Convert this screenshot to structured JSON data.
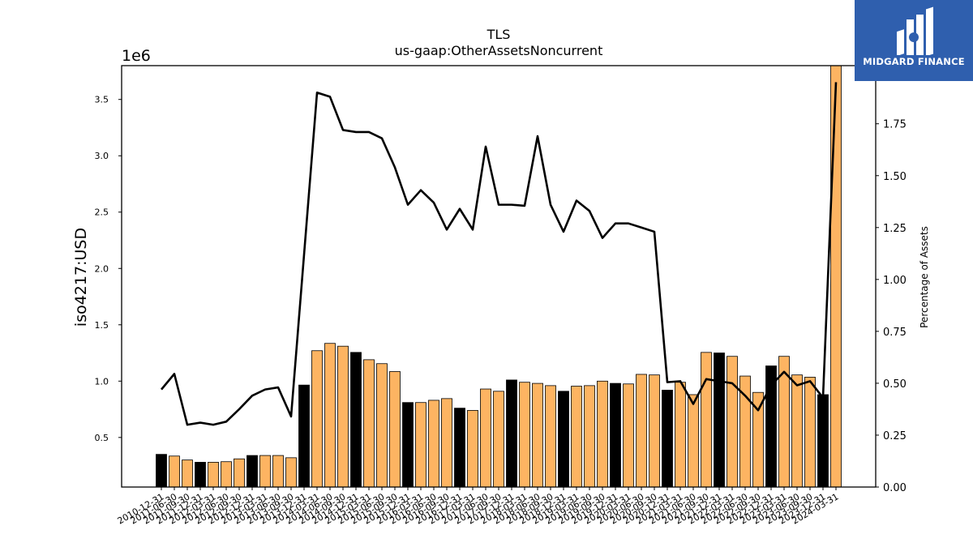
{
  "chart_data": {
    "type": "bar",
    "title": "TLS",
    "subtitle": "us-gaap:OtherAssetsNoncurrent",
    "ylabel": "iso4217:USD",
    "y_offset_label": "1e6",
    "y2label": "Percentage of Assets",
    "ylim": [
      0.06,
      3.8
    ],
    "y2lim": [
      0,
      2.03
    ],
    "yticks": [
      "0.5",
      "1.0",
      "1.5",
      "2.0",
      "2.5",
      "3.0",
      "3.5"
    ],
    "y2ticks": [
      "0.00",
      "0.25",
      "0.50",
      "0.75",
      "1.00",
      "1.25",
      "1.50",
      "1.75"
    ],
    "grid": false,
    "categories": [
      "2010-12-31",
      "2011-06-30",
      "2011-09-30",
      "2011-12-31",
      "2012-03-31",
      "2012-06-30",
      "2012-09-30",
      "2012-12-31",
      "2013-03-31",
      "2013-06-30",
      "2013-09-30",
      "2013-12-31",
      "2014-03-31",
      "2014-06-30",
      "2014-09-30",
      "2014-12-31",
      "2015-03-31",
      "2015-06-30",
      "2015-09-30",
      "2015-12-31",
      "2016-03-31",
      "2016-06-30",
      "2016-09-30",
      "2016-12-31",
      "2017-03-31",
      "2017-06-30",
      "2017-09-30",
      "2017-12-31",
      "2018-03-31",
      "2018-06-30",
      "2018-09-30",
      "2018-12-31",
      "2019-03-31",
      "2019-06-30",
      "2019-09-30",
      "2019-12-31",
      "2020-03-31",
      "2020-06-30",
      "2020-09-30",
      "2020-12-31",
      "2021-03-31",
      "2021-06-30",
      "2021-09-30",
      "2021-12-31",
      "2022-03-31",
      "2022-06-30",
      "2022-09-30",
      "2022-12-31",
      "2023-03-31",
      "2023-06-30",
      "2023-09-30",
      "2023-12-31",
      "2024-03-31"
    ],
    "tick_labels": [
      "2010-12-31",
      "2011-06-30",
      "2011-09-30",
      "2011-12-31",
      "2012-03-31",
      "2012-06-30",
      "2012-09-30",
      "2012-12-31",
      "2013-03-31",
      "2013-06-30",
      "2013-09-30",
      "2013-12-31",
      "2014-03-31",
      "2014-06-30",
      "2014-09-30",
      "2014-12-31",
      "2015-03-31",
      "2015-06-30",
      "2015-09-30",
      "2015-12-31",
      "2016-03-31",
      "2016-06-30",
      "2016-09-30",
      "2016-12-31",
      "2017-03-31",
      "2017-06-30",
      "2017-09-30",
      "2017-12-31",
      "2018-03-31",
      "2018-06-30",
      "2018-09-30",
      "2018-12-31",
      "2019-03-31",
      "2019-06-30",
      "2019-09-30",
      "2019-12-31",
      "2020-03-31",
      "2020-06-30",
      "2020-09-30",
      "2020-12-31",
      "2021-03-31",
      "2021-06-30",
      "2021-09-30",
      "2021-12-31",
      "2022-03-31",
      "2022-06-30",
      "2022-09-30",
      "2022-12-31",
      "2023-03-31",
      "2023-06-30",
      "2023-09-30",
      "2023-12-31",
      "2024-03-31"
    ],
    "values": [
      0.35,
      0.335,
      0.3,
      0.28,
      0.28,
      0.285,
      0.31,
      0.34,
      0.34,
      0.34,
      0.32,
      0.965,
      1.27,
      1.335,
      1.31,
      1.255,
      1.19,
      1.155,
      1.085,
      0.81,
      0.81,
      0.83,
      0.845,
      0.76,
      0.74,
      0.93,
      0.91,
      1.01,
      0.99,
      0.98,
      0.96,
      0.91,
      0.955,
      0.96,
      1.0,
      0.98,
      0.975,
      1.06,
      1.055,
      0.92,
      0.99,
      0.88,
      1.255,
      1.25,
      1.22,
      1.045,
      0.9,
      1.135,
      1.22,
      1.055,
      1.035,
      0.88,
      3.8
    ],
    "bar_highlight": [
      true,
      false,
      false,
      true,
      false,
      false,
      false,
      true,
      false,
      false,
      false,
      true,
      false,
      false,
      false,
      true,
      false,
      false,
      false,
      true,
      false,
      false,
      false,
      true,
      false,
      false,
      false,
      true,
      false,
      false,
      false,
      true,
      false,
      false,
      false,
      true,
      false,
      false,
      false,
      true,
      false,
      false,
      false,
      true,
      false,
      false,
      false,
      true,
      false,
      false,
      false,
      true,
      false
    ],
    "line_pct": [
      0.47,
      0.545,
      0.3,
      0.31,
      0.3,
      0.315,
      0.375,
      0.44,
      0.47,
      0.48,
      0.34,
      1.12,
      1.9,
      1.88,
      1.72,
      1.71,
      1.71,
      1.68,
      1.54,
      1.36,
      1.43,
      1.37,
      1.24,
      1.34,
      1.24,
      1.64,
      1.36,
      1.36,
      1.355,
      1.69,
      1.36,
      1.23,
      1.38,
      1.33,
      1.2,
      1.27,
      1.27,
      1.25,
      1.23,
      0.505,
      0.51,
      0.4,
      0.52,
      0.51,
      0.5,
      0.44,
      0.37,
      0.49,
      0.555,
      0.49,
      0.51,
      0.43,
      1.95
    ],
    "colors": {
      "bar_regular": "#fdb462",
      "bar_highlight": "#000000",
      "bar_edge": "#000000",
      "line": "#000000"
    }
  },
  "watermark": {
    "brand": "MIDGARD FINANCE",
    "background": "#2f5fae"
  }
}
